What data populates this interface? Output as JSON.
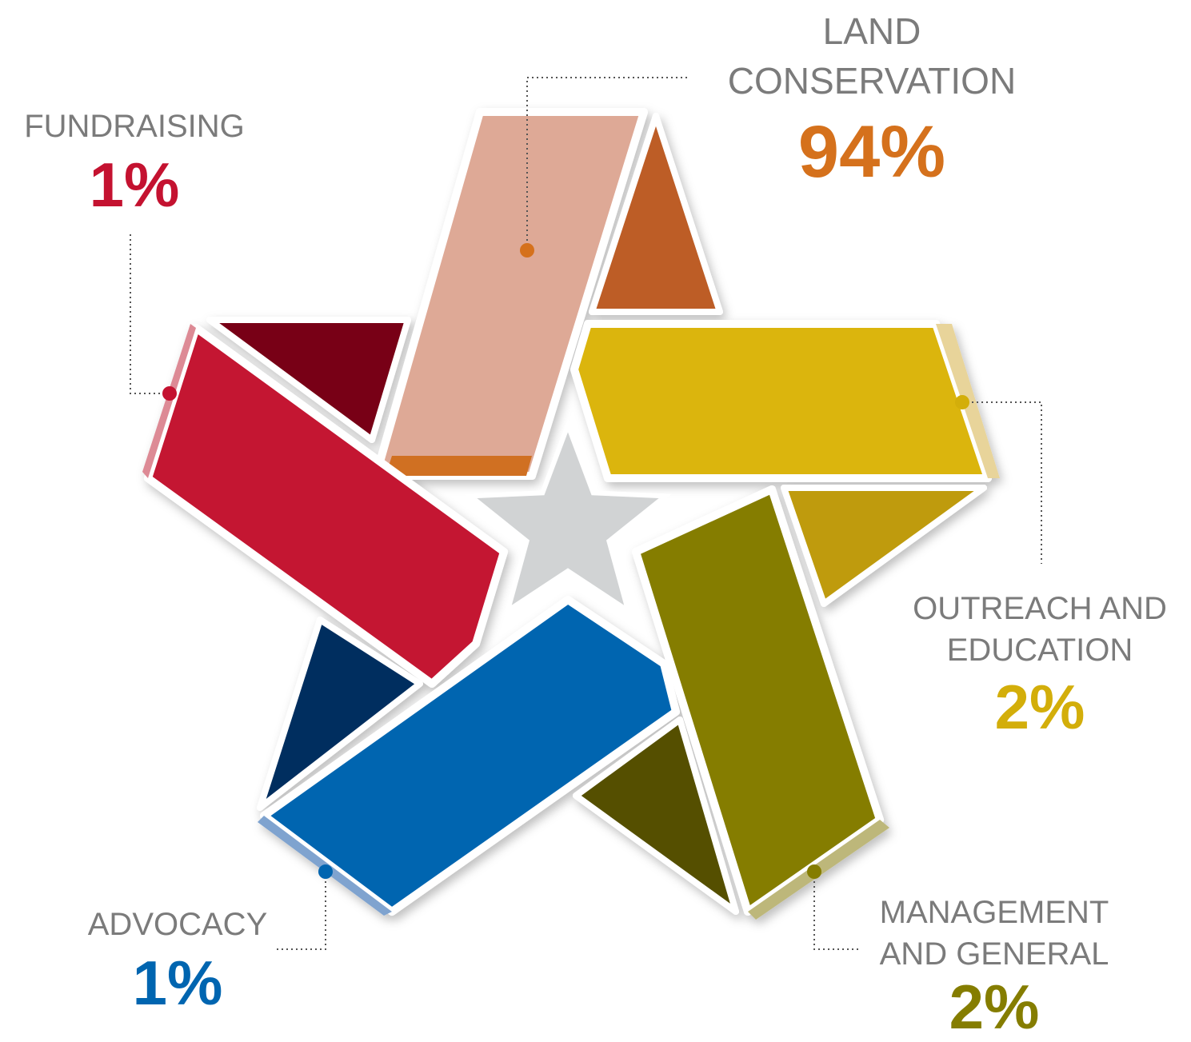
{
  "chart_data": {
    "type": "star",
    "categories": [
      "LAND CONSERVATION",
      "OUTREACH AND EDUCATION",
      "MANAGEMENT AND GENERAL",
      "ADVOCACY",
      "FUNDRAISING"
    ],
    "values": [
      94,
      2,
      2,
      1,
      1
    ],
    "value_labels": [
      "94%",
      "2%",
      "2%",
      "1%",
      "1%"
    ],
    "colors": [
      "#d5711c",
      "#d3ae0a",
      "#857d00",
      "#0065b0",
      "#c41230"
    ]
  }
}
